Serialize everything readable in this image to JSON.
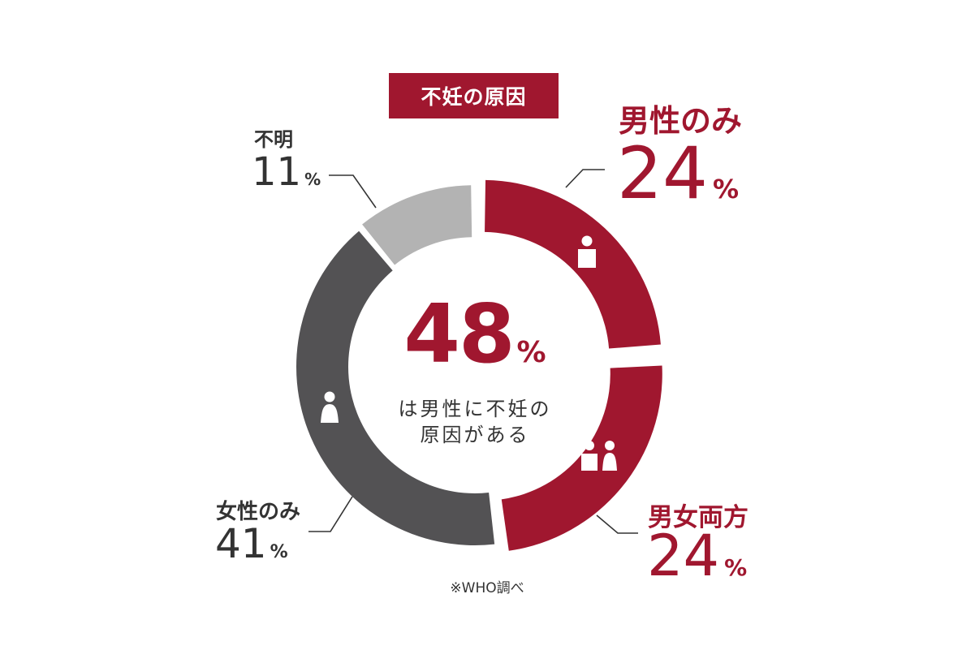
{
  "title": "不妊の原因",
  "colors": {
    "male_only": "#a0172f",
    "both": "#a0172f",
    "female_only": "#535254",
    "unknown": "#b3b3b3",
    "text_dark": "#333333",
    "accent": "#a0172f"
  },
  "center": {
    "value": "48",
    "unit": "%",
    "line1": "は男性に不妊の",
    "line2": "原因がある"
  },
  "labels": {
    "male_only": {
      "name": "男性のみ",
      "value": "24",
      "unit": "%"
    },
    "both": {
      "name": "男女両方",
      "value": "24",
      "unit": "%"
    },
    "female_only": {
      "name": "女性のみ",
      "value": "41",
      "unit": "%"
    },
    "unknown": {
      "name": "不明",
      "value": "11",
      "unit": "%"
    }
  },
  "source": "※WHO調べ",
  "icons": {
    "male_only": "male-person-icon",
    "both": "couple-icon",
    "female_only": "female-person-icon"
  },
  "chart_data": {
    "type": "pie",
    "donut": true,
    "title": "不妊の原因",
    "categories": [
      "男性のみ",
      "男女両方",
      "女性のみ",
      "不明"
    ],
    "values": [
      24,
      24,
      41,
      11
    ],
    "unit": "%",
    "center_label": "48%",
    "legend": "none"
  }
}
